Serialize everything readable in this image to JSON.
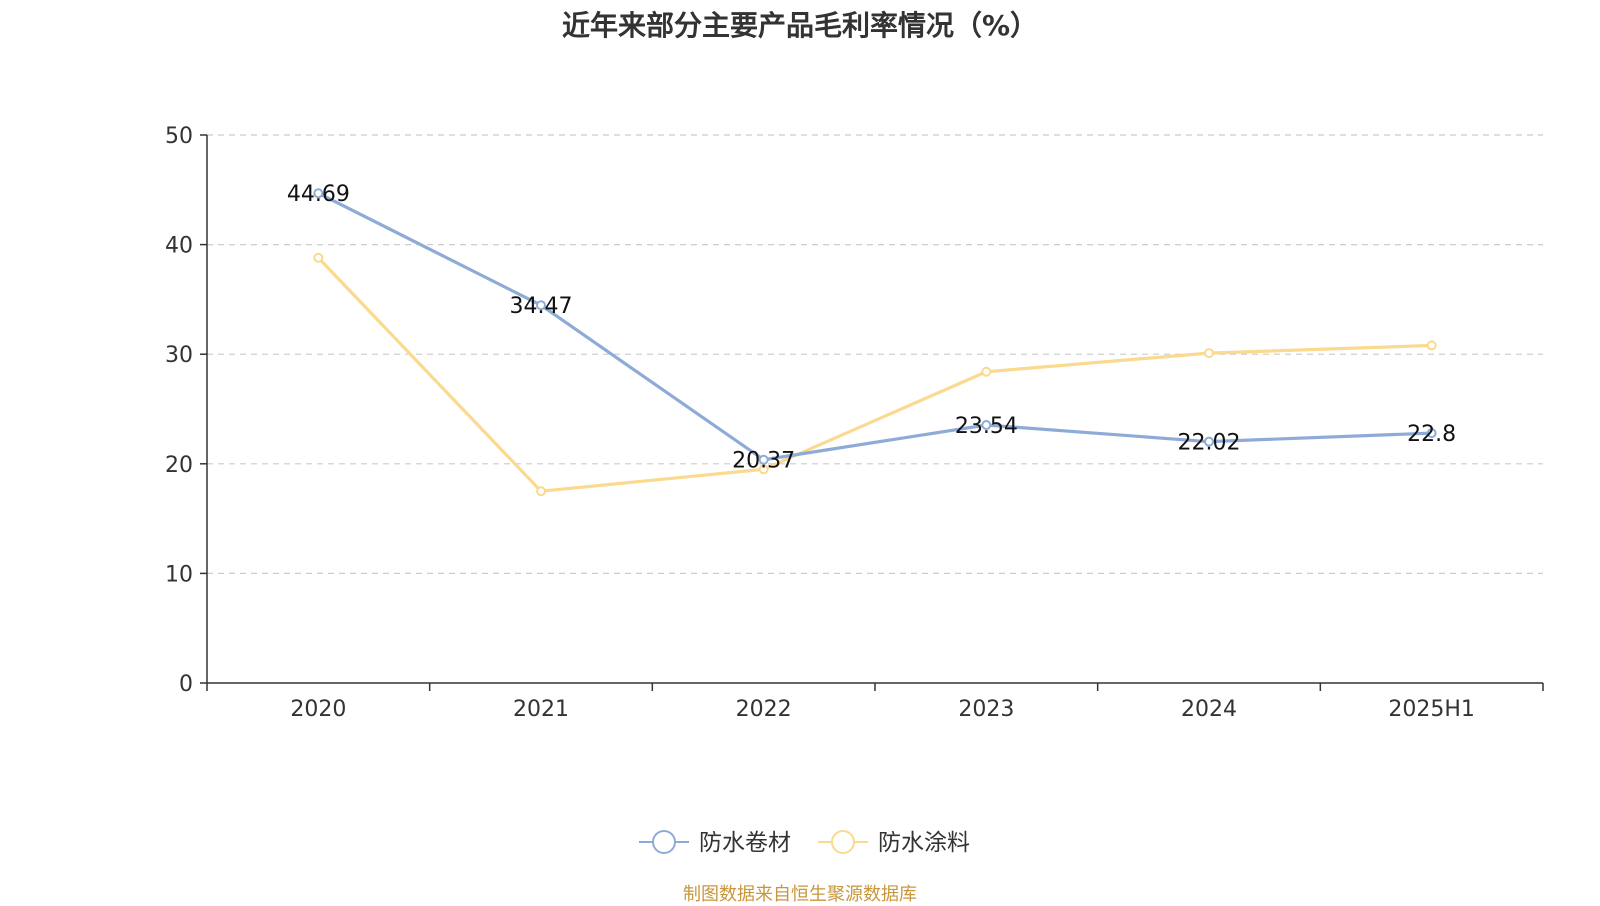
{
  "chart_data": {
    "type": "line",
    "title": "近年来部分主要产品毛利率情况（%）",
    "categories": [
      "2020",
      "2021",
      "2022",
      "2023",
      "2024",
      "2025H1"
    ],
    "ylim": [
      0,
      50
    ],
    "yticks": [
      0,
      10,
      20,
      30,
      40,
      50
    ],
    "grid": true,
    "legend_position": "bottom",
    "series": [
      {
        "name": "防水卷材",
        "color": "#8eabd8",
        "values": [
          44.69,
          34.47,
          20.37,
          23.54,
          22.02,
          22.8
        ],
        "labels": [
          "44.69",
          "34.47",
          "20.37",
          "23.54",
          "22.02",
          "22.8"
        ]
      },
      {
        "name": "防水涂料",
        "color": "#fbd98e",
        "values": [
          38.8,
          17.5,
          19.5,
          28.4,
          30.1,
          30.8
        ]
      }
    ]
  },
  "source": "制图数据来自恒生聚源数据库"
}
